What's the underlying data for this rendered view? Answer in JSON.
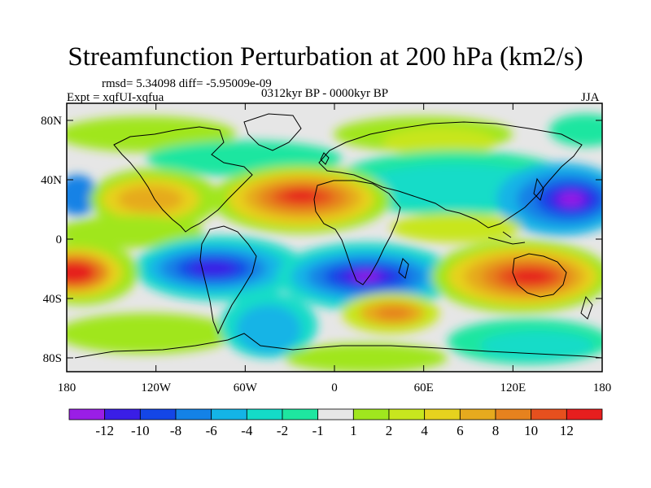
{
  "header": {
    "title": "Streamfunction Perturbation at 200 hPa (km2/s)",
    "stats": "rmsd= 5.34098 diff= -5.95009e-09",
    "experiment": "Expt = xqfUI-xqfua",
    "period": "0312kyr BP - 0000kyr BP",
    "season": "JJA"
  },
  "axes": {
    "x_ticks": [
      "180",
      "120W",
      "60W",
      "0",
      "60E",
      "120E",
      "180"
    ],
    "y_ticks": [
      "80N",
      "40N",
      "0",
      "40S",
      "80S"
    ]
  },
  "colorbar": {
    "colors": [
      "#9a1ee6",
      "#3a1ee6",
      "#1446e6",
      "#1482e6",
      "#14b4e6",
      "#14dcc8",
      "#1ee6a0",
      "#e6e6e6",
      "#a0e61e",
      "#c8e61e",
      "#e6d21e",
      "#e6aa1e",
      "#e6821e",
      "#e6501e",
      "#e61e1e"
    ],
    "labels": [
      "-12",
      "-10",
      "-8",
      "-6",
      "-4",
      "-2",
      "-1",
      "1",
      "2",
      "4",
      "6",
      "8",
      "10",
      "12"
    ]
  }
}
